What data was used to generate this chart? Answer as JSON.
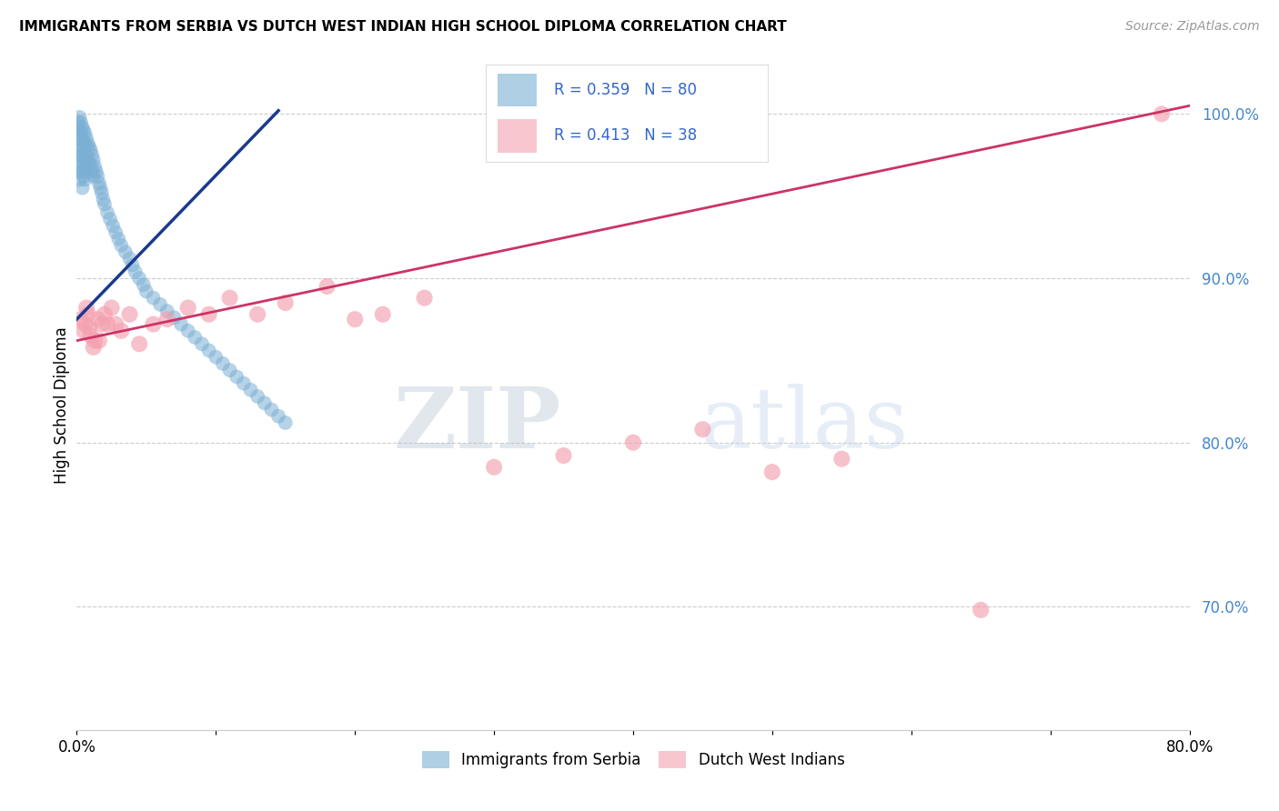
{
  "title": "IMMIGRANTS FROM SERBIA VS DUTCH WEST INDIAN HIGH SCHOOL DIPLOMA CORRELATION CHART",
  "source": "Source: ZipAtlas.com",
  "ylabel": "High School Diploma",
  "x_min": 0.0,
  "x_max": 0.8,
  "y_min": 0.625,
  "y_max": 1.02,
  "x_ticks": [
    0.0,
    0.1,
    0.2,
    0.3,
    0.4,
    0.5,
    0.6,
    0.7,
    0.8
  ],
  "x_tick_labels": [
    "0.0%",
    "",
    "",
    "",
    "",
    "",
    "",
    "",
    "80.0%"
  ],
  "y_ticks_right": [
    0.7,
    0.8,
    0.9,
    1.0
  ],
  "y_tick_labels_right": [
    "70.0%",
    "80.0%",
    "90.0%",
    "100.0%"
  ],
  "grid_color": "#cccccc",
  "background_color": "#ffffff",
  "blue_color": "#7bafd4",
  "pink_color": "#f4a0b0",
  "blue_line_color": "#1a3a8c",
  "pink_line_color": "#cc3366",
  "blue_R": "0.359",
  "blue_N": "80",
  "pink_R": "0.413",
  "pink_N": "38",
  "legend_label_blue": "Immigrants from Serbia",
  "legend_label_pink": "Dutch West Indians",
  "watermark_zip": "ZIP",
  "watermark_atlas": "atlas",
  "serbia_x": [
    0.001,
    0.001,
    0.001,
    0.001,
    0.002,
    0.002,
    0.002,
    0.002,
    0.002,
    0.003,
    0.003,
    0.003,
    0.003,
    0.004,
    0.004,
    0.004,
    0.004,
    0.004,
    0.005,
    0.005,
    0.005,
    0.005,
    0.006,
    0.006,
    0.006,
    0.006,
    0.007,
    0.007,
    0.007,
    0.008,
    0.008,
    0.009,
    0.009,
    0.01,
    0.01,
    0.011,
    0.011,
    0.012,
    0.012,
    0.013,
    0.014,
    0.015,
    0.016,
    0.017,
    0.018,
    0.019,
    0.02,
    0.022,
    0.024,
    0.026,
    0.028,
    0.03,
    0.032,
    0.035,
    0.038,
    0.04,
    0.042,
    0.045,
    0.048,
    0.05,
    0.055,
    0.06,
    0.065,
    0.07,
    0.075,
    0.08,
    0.085,
    0.09,
    0.095,
    0.1,
    0.105,
    0.11,
    0.115,
    0.12,
    0.125,
    0.13,
    0.135,
    0.14,
    0.145,
    0.15
  ],
  "serbia_y": [
    0.995,
    0.985,
    0.975,
    0.965,
    0.998,
    0.99,
    0.98,
    0.97,
    0.96,
    0.995,
    0.988,
    0.978,
    0.968,
    0.992,
    0.985,
    0.975,
    0.965,
    0.955,
    0.99,
    0.982,
    0.972,
    0.962,
    0.988,
    0.98,
    0.97,
    0.96,
    0.985,
    0.975,
    0.965,
    0.982,
    0.972,
    0.98,
    0.97,
    0.978,
    0.968,
    0.975,
    0.965,
    0.972,
    0.962,
    0.968,
    0.965,
    0.962,
    0.958,
    0.955,
    0.952,
    0.948,
    0.945,
    0.94,
    0.936,
    0.932,
    0.928,
    0.924,
    0.92,
    0.916,
    0.912,
    0.908,
    0.904,
    0.9,
    0.896,
    0.892,
    0.888,
    0.884,
    0.88,
    0.876,
    0.872,
    0.868,
    0.864,
    0.86,
    0.856,
    0.852,
    0.848,
    0.844,
    0.84,
    0.836,
    0.832,
    0.828,
    0.824,
    0.82,
    0.816,
    0.812
  ],
  "dutch_x": [
    0.003,
    0.005,
    0.006,
    0.007,
    0.008,
    0.009,
    0.01,
    0.012,
    0.013,
    0.015,
    0.016,
    0.018,
    0.02,
    0.022,
    0.025,
    0.028,
    0.032,
    0.038,
    0.045,
    0.055,
    0.065,
    0.08,
    0.095,
    0.11,
    0.13,
    0.15,
    0.2,
    0.25,
    0.18,
    0.22,
    0.3,
    0.35,
    0.4,
    0.45,
    0.5,
    0.55,
    0.65,
    0.78
  ],
  "dutch_y": [
    0.875,
    0.868,
    0.872,
    0.882,
    0.878,
    0.87,
    0.865,
    0.858,
    0.862,
    0.875,
    0.862,
    0.872,
    0.878,
    0.872,
    0.882,
    0.872,
    0.868,
    0.878,
    0.86,
    0.872,
    0.875,
    0.882,
    0.878,
    0.888,
    0.878,
    0.885,
    0.875,
    0.888,
    0.895,
    0.878,
    0.785,
    0.792,
    0.8,
    0.808,
    0.782,
    0.79,
    0.698,
    1.0
  ]
}
